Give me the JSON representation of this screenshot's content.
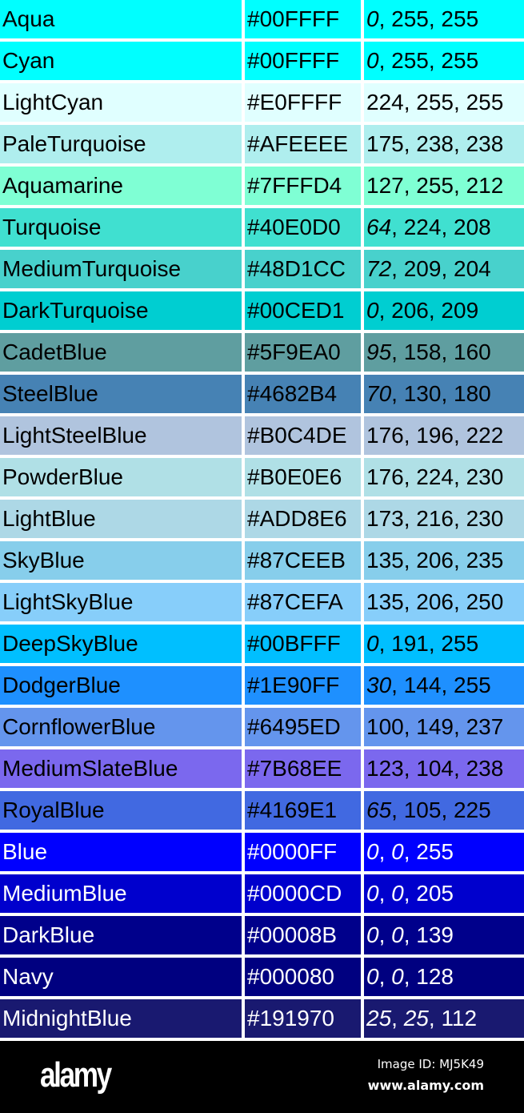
{
  "rows": [
    {
      "name": "Aqua",
      "hex": "#00FFFF",
      "rgb": [
        0,
        255,
        255
      ],
      "text_color": "#000000"
    },
    {
      "name": "Cyan",
      "hex": "#00FFFF",
      "rgb": [
        0,
        255,
        255
      ],
      "text_color": "#000000"
    },
    {
      "name": "LightCyan",
      "hex": "#E0FFFF",
      "rgb": [
        224,
        255,
        255
      ],
      "text_color": "#000000"
    },
    {
      "name": "PaleTurquoise",
      "hex": "#AFEEEE",
      "rgb": [
        175,
        238,
        238
      ],
      "text_color": "#000000"
    },
    {
      "name": "Aquamarine",
      "hex": "#7FFFD4",
      "rgb": [
        127,
        255,
        212
      ],
      "text_color": "#000000"
    },
    {
      "name": "Turquoise",
      "hex": "#40E0D0",
      "rgb": [
        64,
        224,
        208
      ],
      "text_color": "#000000"
    },
    {
      "name": "MediumTurquoise",
      "hex": "#48D1CC",
      "rgb": [
        72,
        209,
        204
      ],
      "text_color": "#000000"
    },
    {
      "name": "DarkTurquoise",
      "hex": "#00CED1",
      "rgb": [
        0,
        206,
        209
      ],
      "text_color": "#000000"
    },
    {
      "name": "CadetBlue",
      "hex": "#5F9EA0",
      "rgb": [
        95,
        158,
        160
      ],
      "text_color": "#000000"
    },
    {
      "name": "SteelBlue",
      "hex": "#4682B4",
      "rgb": [
        70,
        130,
        180
      ],
      "text_color": "#000000"
    },
    {
      "name": "LightSteelBlue",
      "hex": "#B0C4DE",
      "rgb": [
        176,
        196,
        222
      ],
      "text_color": "#000000"
    },
    {
      "name": "PowderBlue",
      "hex": "#B0E0E6",
      "rgb": [
        176,
        224,
        230
      ],
      "text_color": "#000000"
    },
    {
      "name": "LightBlue",
      "hex": "#ADD8E6",
      "rgb": [
        173,
        216,
        230
      ],
      "text_color": "#000000"
    },
    {
      "name": "SkyBlue",
      "hex": "#87CEEB",
      "rgb": [
        135,
        206,
        235
      ],
      "text_color": "#000000"
    },
    {
      "name": "LightSkyBlue",
      "hex": "#87CEFA",
      "rgb": [
        135,
        206,
        250
      ],
      "text_color": "#000000"
    },
    {
      "name": "DeepSkyBlue",
      "hex": "#00BFFF",
      "rgb": [
        0,
        191,
        255
      ],
      "text_color": "#000000"
    },
    {
      "name": "DodgerBlue",
      "hex": "#1E90FF",
      "rgb": [
        30,
        144,
        255
      ],
      "text_color": "#000000"
    },
    {
      "name": "CornflowerBlue",
      "hex": "#6495ED",
      "rgb": [
        100,
        149,
        237
      ],
      "text_color": "#000000"
    },
    {
      "name": "MediumSlateBlue",
      "hex": "#7B68EE",
      "rgb": [
        123,
        104,
        238
      ],
      "text_color": "#000000"
    },
    {
      "name": "RoyalBlue",
      "hex": "#4169E1",
      "rgb": [
        65,
        105,
        225
      ],
      "text_color": "#000000"
    },
    {
      "name": "Blue",
      "hex": "#0000FF",
      "rgb": [
        0,
        0,
        255
      ],
      "text_color": "#FFFFFF"
    },
    {
      "name": "MediumBlue",
      "hex": "#0000CD",
      "rgb": [
        0,
        0,
        205
      ],
      "text_color": "#FFFFFF"
    },
    {
      "name": "DarkBlue",
      "hex": "#00008B",
      "rgb": [
        0,
        0,
        139
      ],
      "text_color": "#FFFFFF"
    },
    {
      "name": "Navy",
      "hex": "#000080",
      "rgb": [
        0,
        0,
        128
      ],
      "text_color": "#FFFFFF"
    },
    {
      "name": "MidnightBlue",
      "hex": "#191970",
      "rgb": [
        25,
        25,
        112
      ],
      "text_color": "#FFFFFF"
    }
  ],
  "footer": {
    "logo": "alamy",
    "image_id": "Image ID: MJ5K49",
    "site": "www.alamy.com"
  }
}
